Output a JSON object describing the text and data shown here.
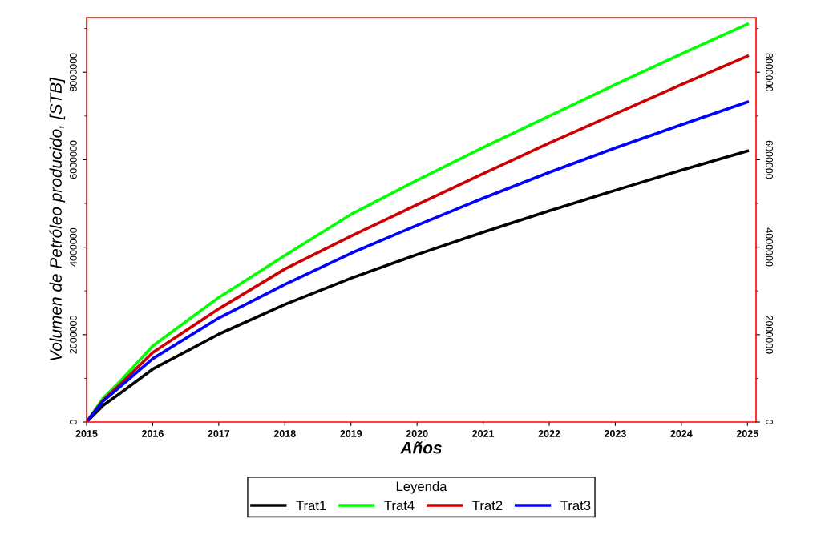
{
  "chart_data": {
    "type": "line",
    "xlabel": "Años",
    "ylabel": "Volumen de Petróleo producido, [STB]",
    "legend_title": "Leyenda",
    "legend": "bottom",
    "grid": false,
    "marker": "none",
    "line_style": "solid",
    "x": [
      2015,
      2015.25,
      2015.5,
      2016,
      2017,
      2018,
      2019,
      2020,
      2021,
      2022,
      2023,
      2024,
      2025
    ],
    "series": [
      {
        "name": "Trat1",
        "color": "#000000",
        "values": [
          0,
          380000,
          650000,
          1210000,
          2010000,
          2690000,
          3290000,
          3830000,
          4340000,
          4830000,
          5300000,
          5760000,
          6200000
        ]
      },
      {
        "name": "Trat4",
        "color": "#00ff00",
        "values": [
          0,
          550000,
          920000,
          1740000,
          2850000,
          3810000,
          4750000,
          5530000,
          6280000,
          7000000,
          7720000,
          8420000,
          9100000
        ]
      },
      {
        "name": "Trat2",
        "color": "#cc0000",
        "values": [
          0,
          500000,
          850000,
          1590000,
          2590000,
          3500000,
          4250000,
          4970000,
          5680000,
          6380000,
          7050000,
          7720000,
          8370000
        ]
      },
      {
        "name": "Trat3",
        "color": "#0000ff",
        "values": [
          0,
          480000,
          800000,
          1450000,
          2380000,
          3150000,
          3860000,
          4500000,
          5120000,
          5710000,
          6270000,
          6800000,
          7320000
        ]
      }
    ],
    "xlim": [
      2015,
      2025.13
    ],
    "xticks": [
      2015,
      2016,
      2017,
      2018,
      2019,
      2020,
      2021,
      2022,
      2023,
      2024,
      2025
    ],
    "ylim": [
      0,
      9250000
    ],
    "yticks": [
      0,
      2000000,
      4000000,
      6000000,
      8000000
    ],
    "y2lim": [
      0,
      9250000
    ],
    "y2ticks": [
      0,
      2000000,
      4000000,
      6000000,
      8000000
    ]
  }
}
